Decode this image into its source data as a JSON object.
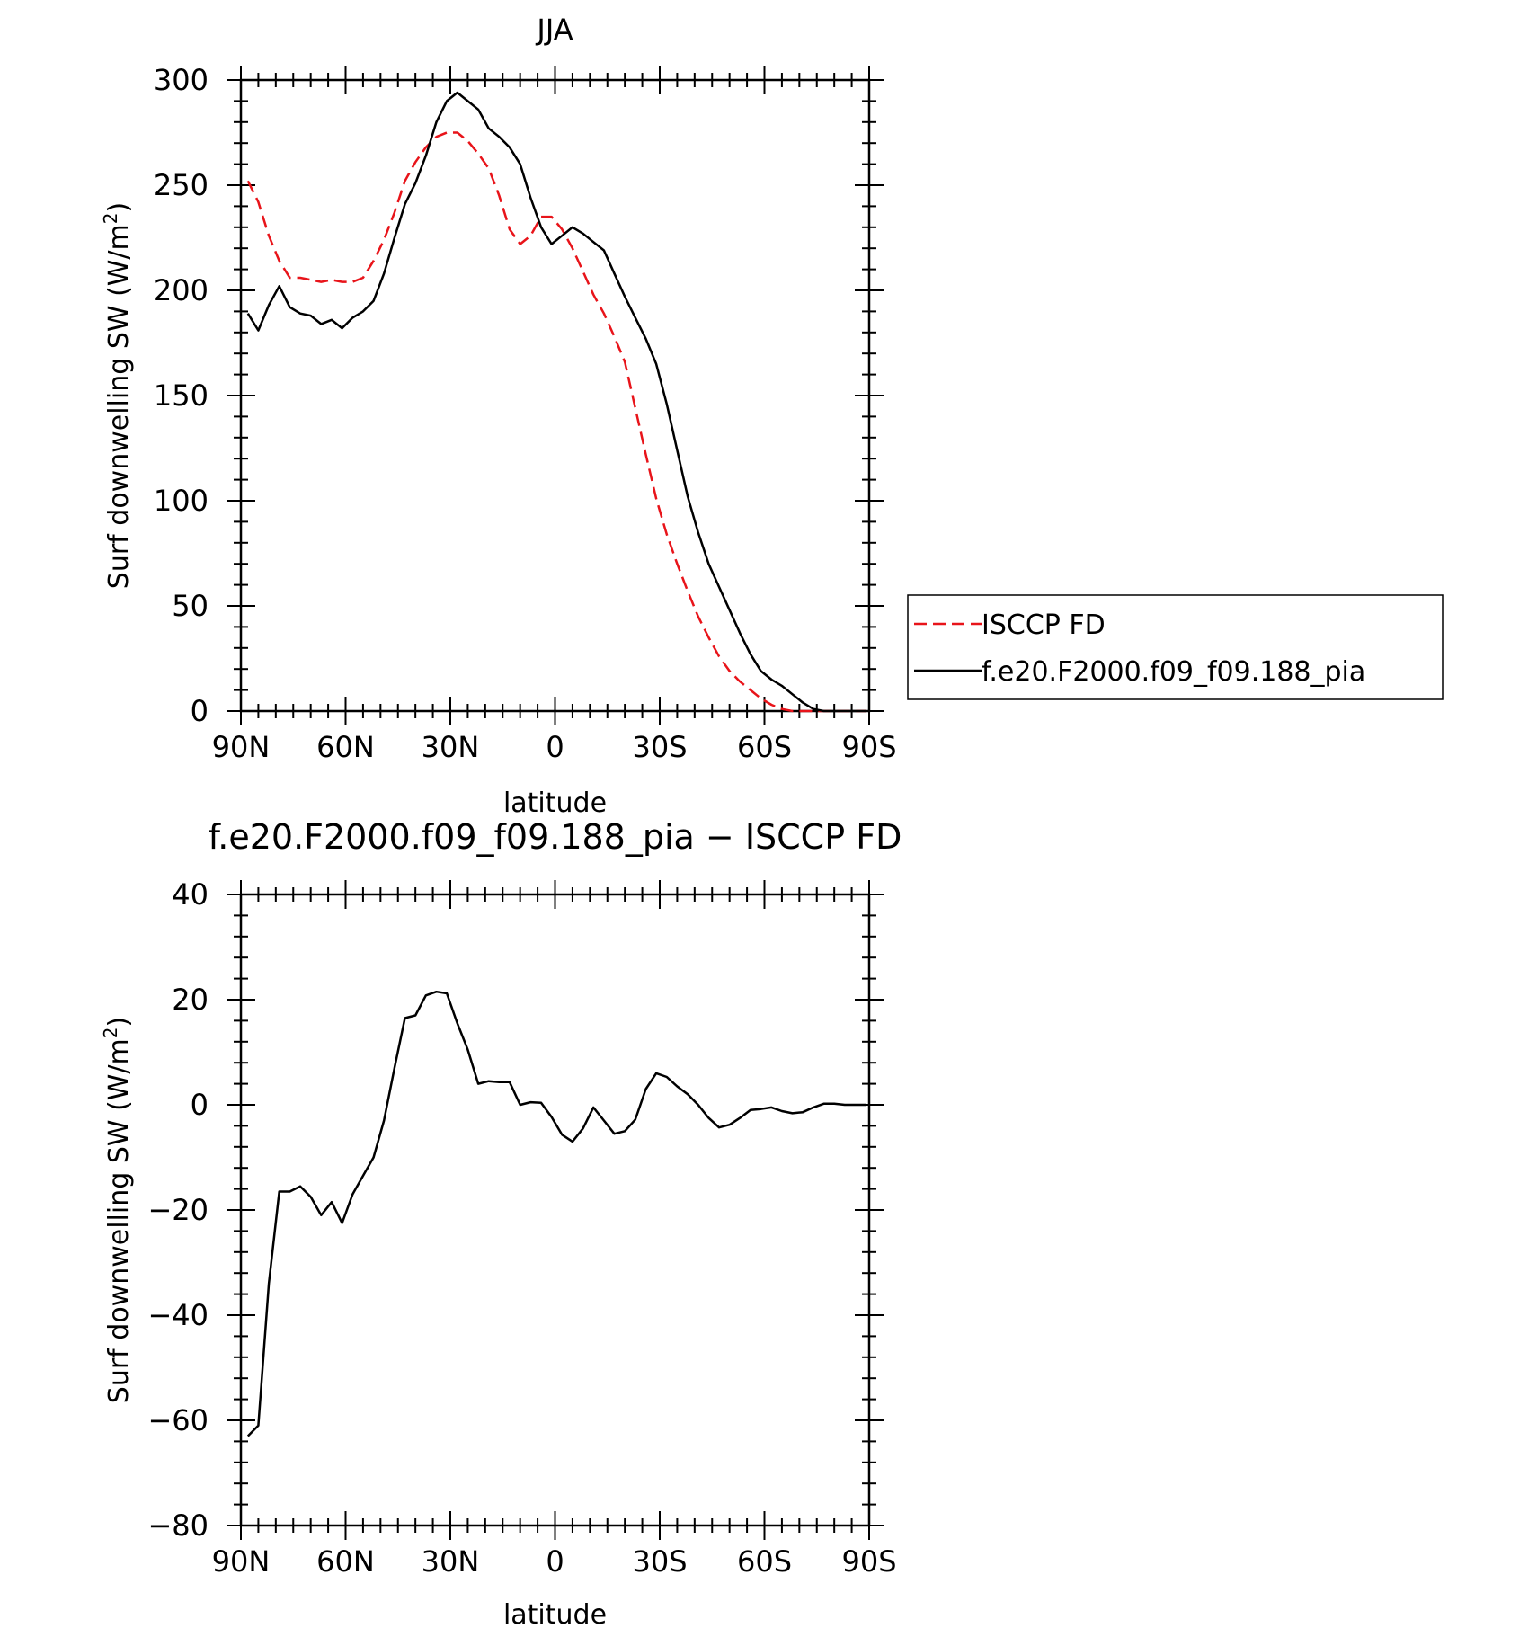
{
  "chart_data": [
    {
      "type": "line",
      "title": "JJA",
      "xlabel": "latitude",
      "ylabel_main": "Surf downwelling SW (W/m",
      "ylabel_sup": "2",
      "ylabel_close": ")",
      "xlim": [
        90,
        -90
      ],
      "ylim": [
        0,
        300
      ],
      "x_ticks": [
        90,
        60,
        30,
        0,
        -30,
        -60,
        -90
      ],
      "x_tick_labels": [
        "90N",
        "60N",
        "30N",
        "0",
        "30S",
        "60S",
        "90S"
      ],
      "y_ticks": [
        0,
        50,
        100,
        150,
        200,
        250,
        300
      ],
      "y_tick_labels": [
        "0",
        "50",
        "100",
        "150",
        "200",
        "250",
        "300"
      ],
      "grid": false,
      "legend_position": "right",
      "series": [
        {
          "name": "ISCCP FD",
          "color": "#e8141a",
          "dash": "dashed",
          "x": [
            88,
            85,
            82,
            79,
            76,
            73,
            70,
            67,
            64,
            61,
            58,
            55,
            52,
            49,
            46,
            43,
            40,
            37,
            34,
            31,
            28,
            25,
            22,
            19,
            16,
            13,
            10,
            7,
            4,
            1,
            -2,
            -5,
            -8,
            -11,
            -14,
            -17,
            -20,
            -23,
            -26,
            -29,
            -32,
            -35,
            -38,
            -41,
            -44,
            -47,
            -50,
            -53,
            -56,
            -59,
            -62,
            -65,
            -68,
            -71,
            -74,
            -77,
            -80,
            -83,
            -86,
            -89
          ],
          "y": [
            252,
            242,
            226,
            214,
            206,
            206,
            205,
            204,
            205,
            204,
            204,
            206,
            214,
            224,
            237,
            252,
            261,
            268,
            273,
            275,
            275,
            271,
            265,
            258,
            245,
            229,
            222,
            226,
            235,
            235,
            229,
            220,
            209,
            198,
            189,
            178,
            166,
            144,
            122,
            101,
            84,
            70,
            57,
            45,
            35,
            26,
            19,
            14,
            10,
            6,
            3,
            1,
            0,
            0,
            0,
            0,
            0,
            0,
            0,
            0
          ]
        },
        {
          "name": "f.e20.F2000.f09_f09.188_pia",
          "color": "#000000",
          "dash": "solid",
          "x": [
            88,
            85,
            82,
            79,
            76,
            73,
            70,
            67,
            64,
            61,
            58,
            55,
            52,
            49,
            46,
            43,
            40,
            37,
            34,
            31,
            28,
            25,
            22,
            19,
            16,
            13,
            10,
            7,
            4,
            1,
            -2,
            -5,
            -8,
            -11,
            -14,
            -17,
            -20,
            -23,
            -26,
            -29,
            -32,
            -35,
            -38,
            -41,
            -44,
            -47,
            -50,
            -53,
            -56,
            -59,
            -62,
            -65,
            -68,
            -71,
            -74,
            -77,
            -80,
            -83,
            -86,
            -89
          ],
          "y": [
            189,
            181,
            193,
            202,
            192,
            189,
            188,
            184,
            186,
            182,
            187,
            190,
            195,
            208,
            225,
            241,
            251,
            264,
            280,
            290,
            294,
            290,
            286,
            277,
            273,
            268,
            260,
            244,
            230,
            222,
            226,
            230,
            227,
            223,
            219,
            208,
            197,
            187,
            177,
            165,
            146,
            124,
            102,
            85,
            70,
            59,
            48,
            37,
            27,
            19,
            15,
            12,
            8,
            4,
            1,
            0,
            0,
            0,
            0,
            0
          ]
        }
      ]
    },
    {
      "type": "line",
      "title": "f.e20.F2000.f09_f09.188_pia − ISCCP FD",
      "xlabel": "latitude",
      "ylabel_main": "Surf downwelling SW (W/m",
      "ylabel_sup": "2",
      "ylabel_close": ")",
      "xlim": [
        90,
        -90
      ],
      "ylim": [
        -80,
        40
      ],
      "x_ticks": [
        90,
        60,
        30,
        0,
        -30,
        -60,
        -90
      ],
      "x_tick_labels": [
        "90N",
        "60N",
        "30N",
        "0",
        "30S",
        "60S",
        "90S"
      ],
      "y_ticks": [
        -80,
        -60,
        -40,
        -20,
        0,
        20,
        40
      ],
      "y_tick_labels": [
        "−80",
        "−60",
        "−40",
        "−20",
        "0",
        "20",
        "40"
      ],
      "grid": false,
      "series": [
        {
          "color": "#000000",
          "dash": "solid",
          "x": [
            88,
            85,
            82,
            79,
            76,
            73,
            70,
            67,
            64,
            61,
            58,
            55,
            52,
            49,
            46,
            43,
            40,
            37,
            34,
            31,
            28,
            25,
            22,
            19,
            16,
            13,
            10,
            7,
            4,
            1,
            -2,
            -5,
            -8,
            -11,
            -14,
            -17,
            -20,
            -23,
            -26,
            -29,
            -32,
            -35,
            -38,
            -41,
            -44,
            -47,
            -50,
            -53,
            -56,
            -59,
            -62,
            -65,
            -68,
            -71,
            -74,
            -77,
            -80,
            -83,
            -86,
            -89
          ],
          "y": [
            -63,
            -61,
            -34,
            -16.5,
            -16.5,
            -15.5,
            -17.5,
            -21,
            -18.5,
            -22.5,
            -17,
            -13.5,
            -10,
            -3,
            7,
            16.5,
            17,
            20.8,
            21.5,
            21.2,
            15.5,
            10.5,
            4,
            4.5,
            4.3,
            4.3,
            0,
            0.5,
            0.4,
            -2.3,
            -5.7,
            -7,
            -4.5,
            -0.5,
            -3,
            -5.5,
            -5,
            -2.8,
            3,
            6,
            5.3,
            3.5,
            2,
            0,
            -2.5,
            -4.3,
            -3.8,
            -2.5,
            -1,
            -0.8,
            -0.5,
            -1.2,
            -1.6,
            -1.4,
            -0.5,
            0.2,
            0.2,
            0,
            0,
            0
          ]
        }
      ]
    }
  ]
}
